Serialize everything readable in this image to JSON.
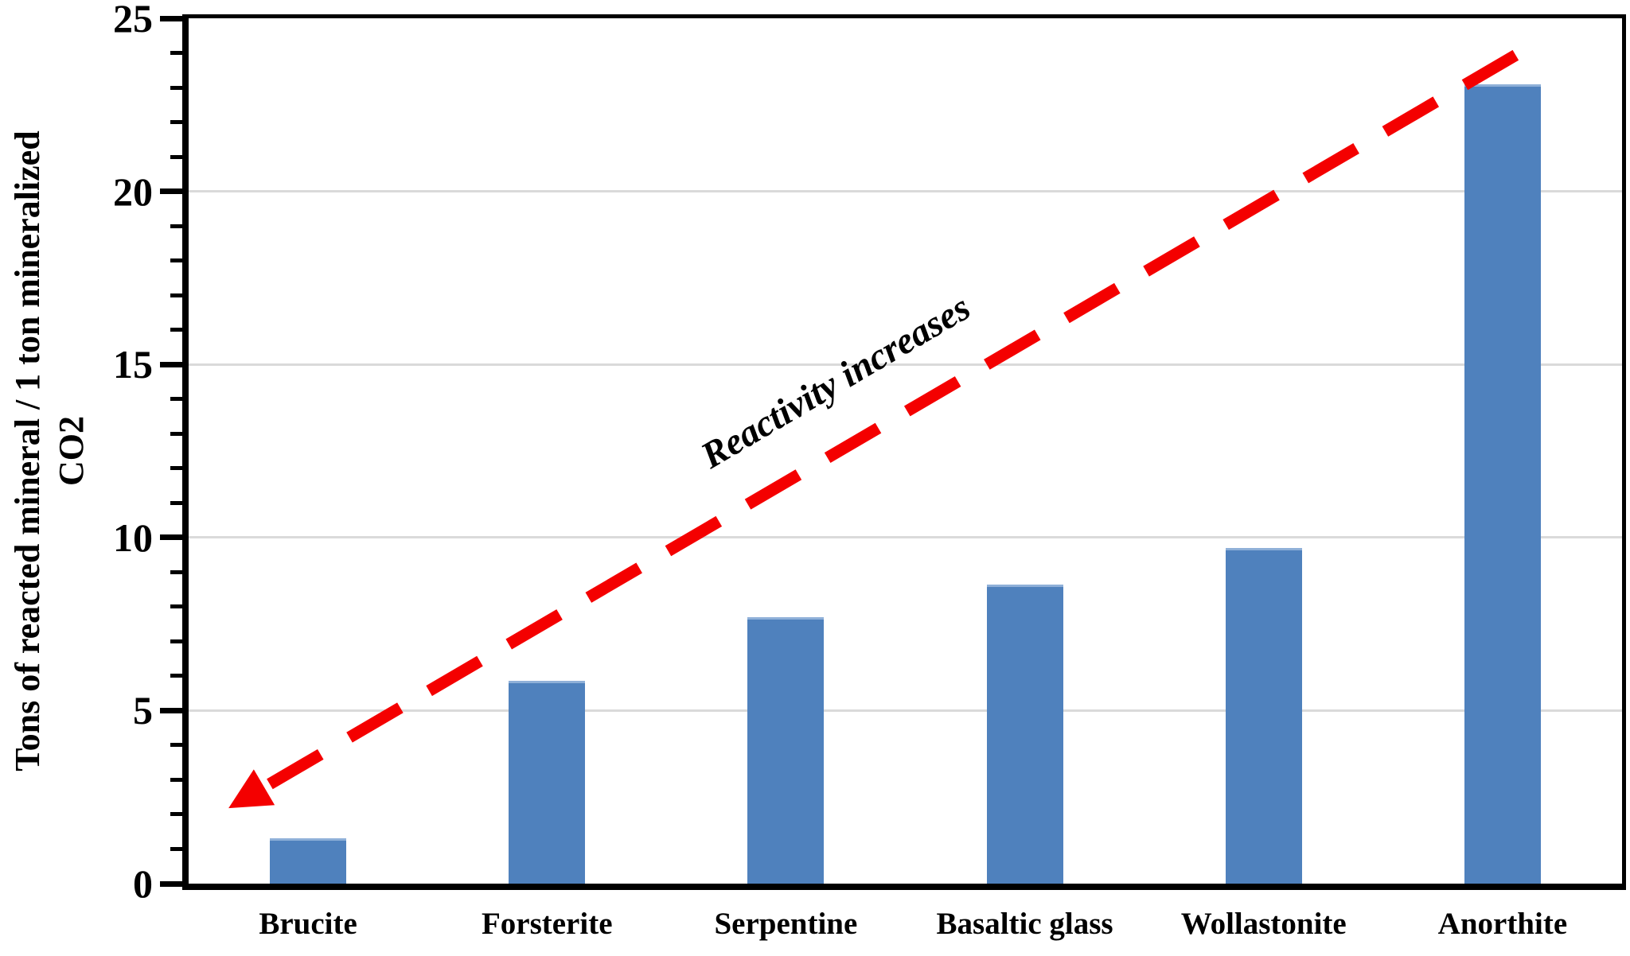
{
  "chart_data": {
    "type": "bar",
    "title": "",
    "categories": [
      "Brucite",
      "Forsterite",
      "Serpentine",
      "Basaltic glass",
      "Wollastonite",
      "Anorthite"
    ],
    "values": [
      1.3,
      5.85,
      7.7,
      8.65,
      9.7,
      23.1
    ],
    "xlabel": "",
    "ylabel": "Tons of reacted mineral / 1 ton mineralized CO2",
    "ylabel_lines": [
      "Tons of reacted mineral / 1 ton mineralized",
      "CO2"
    ],
    "ylim": [
      0,
      25
    ],
    "yticks": [
      0,
      5,
      10,
      15,
      20,
      25
    ],
    "ytick_major_step": 5,
    "ytick_minor_step": 1,
    "grid": "horizontal-major-only",
    "legend_position": "none",
    "bar_color": "#4f81bd",
    "bar_top_edge_color": "#8fb0d8",
    "gridline_color": "#dadada",
    "axis_color": "#000000",
    "annotation": {
      "text": "Reactivity increases",
      "color": "#000000",
      "angle_deg": -30.5,
      "x_center_cat": 2.71,
      "y_center_val": 14.5
    },
    "arrow": {
      "color": "#f40000",
      "style": "dashed",
      "points_toward": "lower-left",
      "tip_x_cat": 0.167,
      "tip_y_val": 2.18,
      "end_x_cat": 5.62,
      "end_y_val": 24.2
    }
  }
}
